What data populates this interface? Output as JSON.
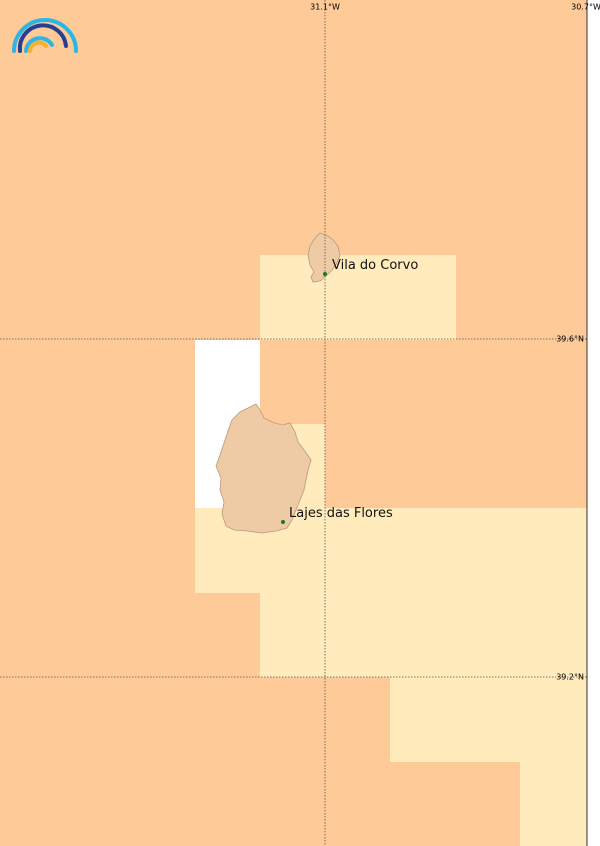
{
  "map": {
    "graticule": {
      "longitude_labels": [
        "31.1°W",
        "30.7°W"
      ],
      "latitude_labels": [
        "39.6°N",
        "39.2°N"
      ]
    },
    "places": [
      {
        "name": "Vila do Corvo"
      },
      {
        "name": "Lajes das Flores"
      }
    ]
  }
}
